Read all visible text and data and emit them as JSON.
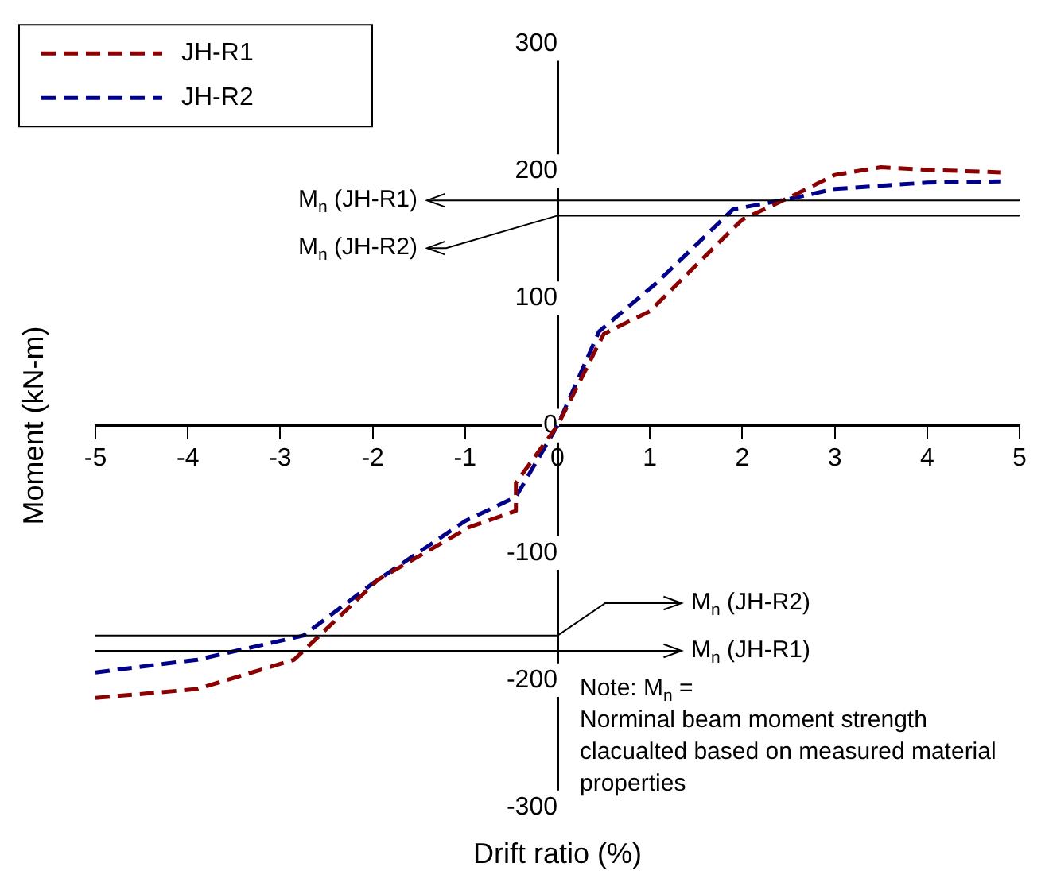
{
  "chart_data": {
    "type": "line",
    "xlabel": "Drift ratio (%)",
    "ylabel": "Moment (kN-m)",
    "xlim": [
      -5,
      5
    ],
    "xticks": [
      -5,
      -4,
      -3,
      -2,
      -1,
      0,
      1,
      2,
      3,
      4,
      5
    ],
    "ylim": [
      -300,
      300
    ],
    "yticks": [
      -300,
      -200,
      -100,
      0,
      100,
      200,
      300
    ],
    "grid": false,
    "legend": "top left",
    "line_style": "dashed",
    "marker": "none",
    "series": [
      {
        "name": "JH-R1",
        "color": "#8b0000",
        "x": [
          -5,
          -3.9,
          -2.85,
          -1.94,
          -0.96,
          -0.45,
          -0.45,
          0,
          0.5,
          1,
          2,
          2.5,
          3,
          3.5,
          4,
          4.8
        ],
        "values": [
          -214,
          -207,
          -184,
          -121,
          -80,
          -67,
          -45,
          0,
          72,
          90,
          162,
          179,
          197,
          203,
          201,
          199
        ]
      },
      {
        "name": "JH-R2",
        "color": "#00008b",
        "x": [
          -5,
          -3.9,
          -2.75,
          -1.98,
          -1,
          -0.45,
          0,
          0.45,
          1.07,
          1.9,
          2.5,
          3,
          4,
          4.8
        ],
        "values": [
          -194,
          -184,
          -165,
          -123,
          -75,
          -56,
          0,
          74,
          112,
          170,
          178,
          186,
          191,
          192
        ]
      }
    ],
    "ref_lines": [
      {
        "axis": "y",
        "value": 177,
        "label": "M$_{n}$ (JH-R1)",
        "color": "#000000"
      },
      {
        "axis": "y",
        "value": 165,
        "label": "M$_{n}$ (JH-R2)",
        "color": "#000000"
      },
      {
        "axis": "y",
        "value": -165,
        "label": "M$_{n}$ (JH-R2)",
        "color": "#000000"
      },
      {
        "axis": "y",
        "value": -177,
        "label": "M$_{n}$ (JH-R1)",
        "color": "#000000"
      }
    ],
    "annotations": [
      "Note: M$_{n}$ = Norminal beam moment strength clacualted based on measured material properties"
    ]
  }
}
